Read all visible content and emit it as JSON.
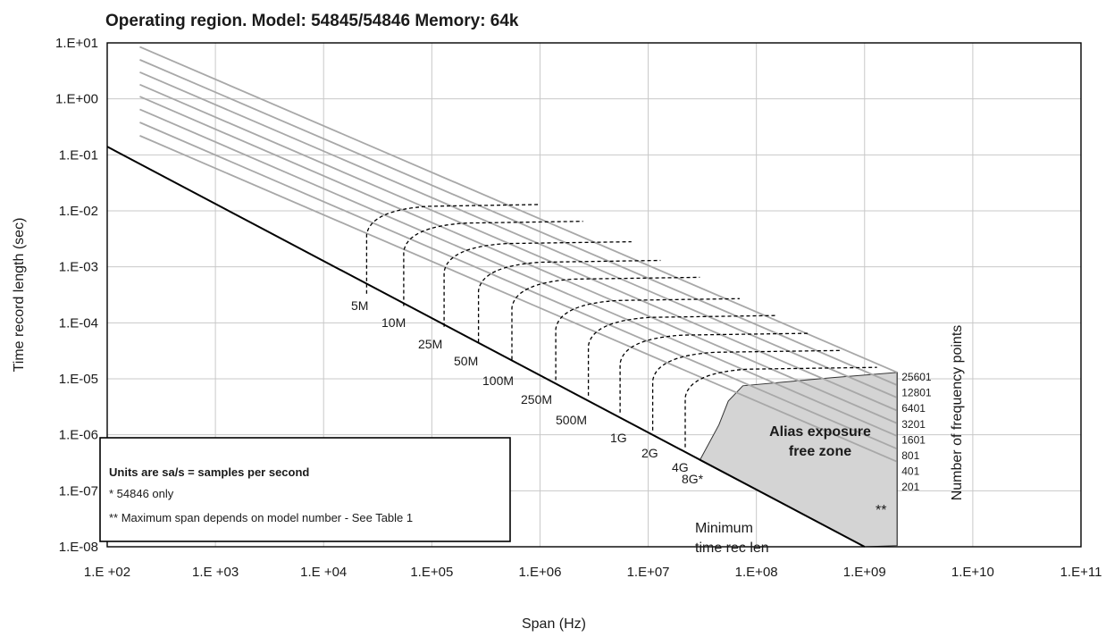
{
  "chart_data": {
    "type": "line",
    "title": "Operating region. Model: 54845/54846 Memory: 64k",
    "xlabel": "Span (Hz)",
    "ylabel": "Time record length (sec)",
    "x_scale": "log",
    "y_scale": "log",
    "xlim": [
      100,
      100000000000
    ],
    "ylim": [
      1e-08,
      10
    ],
    "grid": true,
    "x_ticks": [
      {
        "value": 100,
        "label": "1.E +02"
      },
      {
        "value": 1000,
        "label": "1.E +03"
      },
      {
        "value": 10000,
        "label": "1.E +04"
      },
      {
        "value": 100000,
        "label": "1.E+05"
      },
      {
        "value": 1000000,
        "label": "1.E+06"
      },
      {
        "value": 10000000,
        "label": "1.E+07"
      },
      {
        "value": 100000000,
        "label": "1.E+08"
      },
      {
        "value": 1000000000,
        "label": "1.E+09"
      },
      {
        "value": 10000000000,
        "label": "1.E+10"
      },
      {
        "value": 100000000000,
        "label": "1.E+11"
      }
    ],
    "y_ticks": [
      {
        "value": 10,
        "label": "1.E+01"
      },
      {
        "value": 1,
        "label": "1.E+00"
      },
      {
        "value": 0.1,
        "label": "1.E-01"
      },
      {
        "value": 0.01,
        "label": "1.E-02"
      },
      {
        "value": 0.001,
        "label": "1.E-03"
      },
      {
        "value": 0.0001,
        "label": "1.E-04"
      },
      {
        "value": 1e-05,
        "label": "1.E-05"
      },
      {
        "value": 1e-06,
        "label": "1.E-06"
      },
      {
        "value": 1e-07,
        "label": "1.E-07"
      },
      {
        "value": 1e-08,
        "label": "1.E-08"
      }
    ],
    "min_time_line": {
      "x": [
        100,
        1000000000
      ],
      "y": [
        0.14,
        1e-08
      ]
    },
    "min_time_label": [
      "Minimum",
      "time rec len"
    ],
    "frequency_point_lines": [
      {
        "label": "25601",
        "x": [
          200,
          2000000000
        ],
        "y": [
          8.5,
          1.3e-05
        ]
      },
      {
        "label": "12801",
        "x": [
          200,
          2000000000
        ],
        "y": [
          5.0,
          7.7e-06
        ]
      },
      {
        "label": "6401",
        "x": [
          200,
          2000000000
        ],
        "y": [
          3.0,
          4.6e-06
        ]
      },
      {
        "label": "3201",
        "x": [
          200,
          2000000000
        ],
        "y": [
          1.8,
          2.7e-06
        ]
      },
      {
        "label": "1601",
        "x": [
          200,
          2000000000
        ],
        "y": [
          1.1,
          1.6e-06
        ]
      },
      {
        "label": "801",
        "x": [
          200,
          2000000000
        ],
        "y": [
          0.65,
          9.5e-07
        ]
      },
      {
        "label": "401",
        "x": [
          200,
          2000000000
        ],
        "y": [
          0.38,
          5.6e-07
        ]
      },
      {
        "label": "201",
        "x": [
          200,
          2000000000
        ],
        "y": [
          0.22,
          3.3e-07
        ]
      }
    ],
    "freq_points_axis_label": "Number of frequency points",
    "sample_rate_curves": [
      {
        "label": "5M",
        "x_start": 25000,
        "x_end": 1000000,
        "y_bottom": 0.00033,
        "y_top": 0.013
      },
      {
        "label": "10M",
        "x_start": 55000,
        "x_end": 2500000,
        "y_bottom": 0.0002,
        "y_top": 0.0065
      },
      {
        "label": "25M",
        "x_start": 130000,
        "x_end": 7000000,
        "y_bottom": 8.5e-05,
        "y_top": 0.0028
      },
      {
        "label": "50M",
        "x_start": 270000,
        "x_end": 13000000,
        "y_bottom": 4.5e-05,
        "y_top": 0.0013
      },
      {
        "label": "100M",
        "x_start": 550000,
        "x_end": 30000000,
        "y_bottom": 2.2e-05,
        "y_top": 0.00065
      },
      {
        "label": "250M",
        "x_start": 1400000,
        "x_end": 70000000,
        "y_bottom": 9.5e-06,
        "y_top": 0.00027
      },
      {
        "label": "500M",
        "x_start": 2800000,
        "x_end": 150000000,
        "y_bottom": 5e-06,
        "y_top": 0.000135
      },
      {
        "label": "1G",
        "x_start": 5500000,
        "x_end": 300000000,
        "y_bottom": 2.5e-06,
        "y_top": 6.5e-05
      },
      {
        "label": "2G",
        "x_start": 11000000,
        "x_end": 600000000,
        "y_bottom": 1.2e-06,
        "y_top": 3.2e-05
      },
      {
        "label": "4G",
        "x_start": 22000000,
        "x_end": 1300000000,
        "y_bottom": 6e-07,
        "y_top": 1.6e-05
      },
      {
        "label": "8G*",
        "x_start": 0,
        "x_end": 0,
        "y_bottom": 0,
        "y_top": 0
      }
    ],
    "alias_zone": {
      "label_line1": "Alias exposure",
      "label_line2": "free zone",
      "polygon": [
        [
          30000000,
          3.5e-07
        ],
        [
          45000000,
          1.5e-06
        ],
        [
          55000000,
          4e-06
        ],
        [
          75000000,
          7.5e-06
        ],
        [
          500000000,
          1.05e-05
        ],
        [
          2000000000,
          1.3e-05
        ],
        [
          2000000000,
          1.05e-08
        ],
        [
          1000000000,
          1e-08
        ]
      ],
      "marker": "**"
    },
    "notes": {
      "heading": "Units are sa/s = samples per second",
      "line1": "*  54846 only",
      "line2": "** Maximum span depends on model number - See Table 1"
    }
  }
}
